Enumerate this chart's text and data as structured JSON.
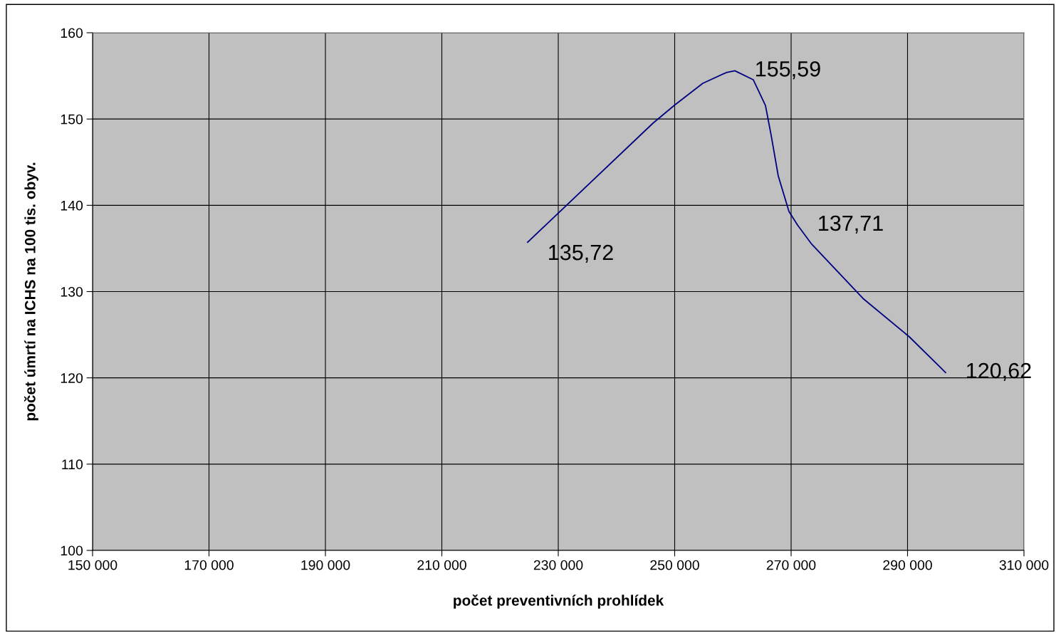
{
  "chart_data": {
    "type": "line",
    "xlabel": "počet preventivních prohlídek",
    "ylabel": "počet úmrtí na ICHS na 100 tis. obyv.",
    "x": [
      224740,
      246270,
      249930,
      254830,
      258860,
      260330,
      263510,
      265590,
      266570,
      267790,
      269630,
      271100,
      273540,
      282470,
      290300,
      296540
    ],
    "series": [
      {
        "color": "#000080",
        "values": [
          135.72,
          149.52,
          151.58,
          154.14,
          155.38,
          155.59,
          154.55,
          151.58,
          148.12,
          143.41,
          139.29,
          137.71,
          135.49,
          129.13,
          124.76,
          120.62
        ],
        "value_labels": [
          "135,72",
          null,
          null,
          null,
          null,
          "155,59",
          null,
          null,
          null,
          null,
          null,
          "137,71",
          null,
          null,
          null,
          "120,62"
        ]
      }
    ],
    "xlim": [
      150000,
      310000
    ],
    "xticks": [
      {
        "value": 150000,
        "label": "150 000"
      },
      {
        "value": 170000,
        "label": "170 000"
      },
      {
        "value": 190000,
        "label": "190 000"
      },
      {
        "value": 210000,
        "label": "210 000"
      },
      {
        "value": 230000,
        "label": "230 000"
      },
      {
        "value": 250000,
        "label": "250 000"
      },
      {
        "value": 270000,
        "label": "270 000"
      },
      {
        "value": 290000,
        "label": "290 000"
      },
      {
        "value": 310000,
        "label": "310 000"
      }
    ],
    "ylim": [
      100,
      160
    ],
    "yticks": [
      100,
      110,
      120,
      130,
      140,
      150,
      160
    ],
    "grid": true,
    "marker": "none",
    "line_style": "solid",
    "legend": false
  }
}
